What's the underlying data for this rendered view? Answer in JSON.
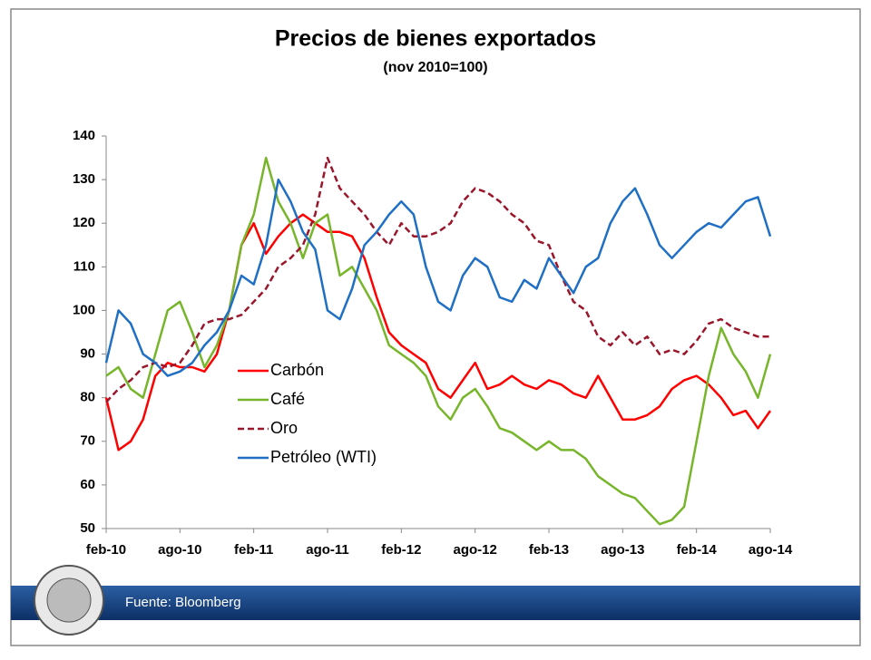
{
  "chart_data": {
    "type": "line",
    "title": "Precios de bienes exportados",
    "subtitle": "(nov 2010=100)",
    "source": "Fuente: Bloomberg",
    "categories": [
      "feb-10",
      null,
      null,
      null,
      null,
      null,
      "ago-10",
      null,
      null,
      null,
      null,
      null,
      "feb-11",
      null,
      null,
      null,
      null,
      null,
      "ago-11",
      null,
      null,
      null,
      null,
      null,
      "feb-12",
      null,
      null,
      null,
      null,
      null,
      "ago-12",
      null,
      null,
      null,
      null,
      null,
      "feb-13",
      null,
      null,
      null,
      null,
      null,
      "ago-13",
      null,
      null,
      null,
      null,
      null,
      "feb-14",
      null,
      null,
      null,
      null,
      null,
      "ago-14"
    ],
    "series": [
      {
        "name": "Carbón",
        "color": "#ff0000",
        "dashed": false,
        "values": [
          80,
          68,
          70,
          75,
          85,
          88,
          87,
          87,
          86,
          90,
          100,
          115,
          120,
          113,
          117,
          120,
          122,
          120,
          118,
          118,
          117,
          112,
          103,
          95,
          92,
          90,
          88,
          82,
          80,
          84,
          88,
          82,
          83,
          85,
          83,
          82,
          84,
          83,
          81,
          80,
          85,
          80,
          75,
          75,
          76,
          78,
          82,
          84,
          85,
          83,
          80,
          76,
          77,
          73,
          77
        ]
      },
      {
        "name": "Café",
        "color": "#77b52a",
        "dashed": false,
        "values": [
          85,
          87,
          82,
          80,
          90,
          100,
          102,
          95,
          87,
          92,
          100,
          115,
          122,
          135,
          125,
          120,
          112,
          120,
          122,
          108,
          110,
          105,
          100,
          92,
          90,
          88,
          85,
          78,
          75,
          80,
          82,
          78,
          73,
          72,
          70,
          68,
          70,
          68,
          68,
          66,
          62,
          60,
          58,
          57,
          54,
          51,
          52,
          55,
          70,
          85,
          96,
          90,
          86,
          80,
          90
        ]
      },
      {
        "name": "Oro",
        "color": "#99162b",
        "dashed": true,
        "values": [
          79,
          82,
          84,
          87,
          88,
          87,
          88,
          92,
          97,
          98,
          98,
          99,
          102,
          105,
          110,
          112,
          115,
          122,
          135,
          128,
          125,
          122,
          118,
          115,
          120,
          117,
          117,
          118,
          120,
          125,
          128,
          127,
          125,
          122,
          120,
          116,
          115,
          108,
          102,
          100,
          94,
          92,
          95,
          92,
          94,
          90,
          91,
          90,
          93,
          97,
          98,
          96,
          95,
          94,
          94
        ]
      },
      {
        "name": "Petróleo (WTI)",
        "color": "#1f6fc5",
        "dashed": false,
        "values": [
          88,
          100,
          97,
          90,
          88,
          85,
          86,
          88,
          92,
          95,
          100,
          108,
          106,
          115,
          130,
          125,
          118,
          114,
          100,
          98,
          105,
          115,
          118,
          122,
          125,
          122,
          110,
          102,
          100,
          108,
          112,
          110,
          103,
          102,
          107,
          105,
          112,
          108,
          104,
          110,
          112,
          120,
          125,
          128,
          122,
          115,
          112,
          115,
          118,
          120,
          119,
          122,
          125,
          126,
          117
        ]
      }
    ],
    "ylim": [
      50,
      140
    ],
    "yticks": [
      50,
      60,
      70,
      80,
      90,
      100,
      110,
      120,
      130,
      140
    ],
    "legend": "center-left",
    "grid": false
  }
}
